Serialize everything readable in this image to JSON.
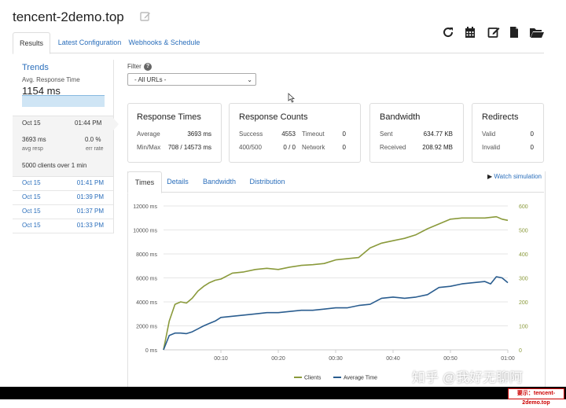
{
  "header": {
    "title": "tencent-2demo.top",
    "tabs": [
      "Results",
      "Latest Configuration",
      "Webhooks & Schedule"
    ]
  },
  "toolbar_icons": [
    "refresh-icon",
    "calendar-icon",
    "edit-icon",
    "document-icon",
    "folder-open-icon"
  ],
  "sidebar": {
    "trends_label": "Trends",
    "avg_label": "Avg. Response Time",
    "avg_value": "1154 ms",
    "selected": {
      "date": "Oct 15",
      "time": "01:44 PM",
      "avg_resp_value": "3693 ms",
      "avg_resp_label": "avg resp",
      "err_value": "0.0 %",
      "err_label": "err rate",
      "clients": "5000 clients over 1 min"
    },
    "runs": [
      {
        "date": "Oct 15",
        "time": "01:41 PM"
      },
      {
        "date": "Oct 15",
        "time": "01:39 PM"
      },
      {
        "date": "Oct 15",
        "time": "01:37 PM"
      },
      {
        "date": "Oct 15",
        "time": "01:33 PM"
      }
    ]
  },
  "filter": {
    "label": "Filter",
    "info": "?",
    "selected": "- All URLs -"
  },
  "cards": {
    "response_times": {
      "title": "Response Times",
      "average_label": "Average",
      "average_value": "3693 ms",
      "minmax_label": "Min/Max",
      "minmax_value": "708 / 14573 ms"
    },
    "response_counts": {
      "title": "Response Counts",
      "success_label": "Success",
      "success_value": "4553",
      "timeout_label": "Timeout",
      "timeout_value": "0",
      "err_label": "400/500",
      "err_value": "0 / 0",
      "network_label": "Network",
      "network_value": "0"
    },
    "bandwidth": {
      "title": "Bandwidth",
      "sent_label": "Sent",
      "sent_value": "634.77 KB",
      "received_label": "Received",
      "received_value": "208.92 MB"
    },
    "redirects": {
      "title": "Redirects",
      "valid_label": "Valid",
      "valid_value": "0",
      "invalid_label": "Invalid",
      "invalid_value": "0"
    }
  },
  "chart_tabs": [
    "Times",
    "Details",
    "Bandwidth",
    "Distribution"
  ],
  "watch_label": "Watch simulation",
  "watermark": "知乎 @我好无聊阿",
  "corner_label": "要示：tencent-2demo.top",
  "colors": {
    "clients": "#8a9a3b",
    "avg_time": "#2a5d8f",
    "link": "#2a6ebb"
  },
  "chart_data": {
    "type": "line",
    "x_ticks": [
      "00:10",
      "00:20",
      "00:30",
      "00:40",
      "00:50",
      "01:00"
    ],
    "x_range": [
      0,
      60
    ],
    "y_left": {
      "ticks": [
        "0 ms",
        "2000 ms",
        "4000 ms",
        "6000 ms",
        "8000 ms",
        "10000 ms",
        "12000 ms"
      ],
      "range": [
        0,
        12000
      ]
    },
    "y_right": {
      "ticks": [
        "0",
        "100",
        "200",
        "300",
        "400",
        "500",
        "600"
      ],
      "range": [
        0,
        600
      ]
    },
    "series": [
      {
        "name": "Clients",
        "axis": "right",
        "color": "#8a9a3b",
        "x": [
          0,
          1,
          2,
          3,
          4,
          5,
          6,
          7,
          8,
          9,
          10,
          12,
          14,
          16,
          18,
          20,
          22,
          24,
          26,
          28,
          30,
          32,
          34,
          36,
          38,
          40,
          42,
          44,
          46,
          48,
          50,
          52,
          54,
          56,
          58,
          59,
          60
        ],
        "y": [
          0,
          120,
          190,
          200,
          195,
          215,
          245,
          265,
          280,
          290,
          295,
          320,
          325,
          335,
          340,
          335,
          345,
          352,
          355,
          360,
          375,
          380,
          385,
          425,
          445,
          455,
          465,
          480,
          505,
          525,
          545,
          550,
          550,
          550,
          555,
          545,
          540
        ]
      },
      {
        "name": "Average Time",
        "axis": "left",
        "color": "#2a5d8f",
        "x": [
          0,
          1,
          2,
          3,
          4,
          5,
          6,
          7,
          8,
          9,
          10,
          12,
          14,
          16,
          18,
          20,
          22,
          24,
          26,
          28,
          30,
          32,
          34,
          36,
          38,
          40,
          42,
          44,
          46,
          48,
          50,
          52,
          54,
          56,
          57,
          58,
          59,
          60
        ],
        "y": [
          0,
          1200,
          1400,
          1400,
          1350,
          1500,
          1750,
          2000,
          2200,
          2400,
          2700,
          2800,
          2900,
          3000,
          3100,
          3100,
          3200,
          3300,
          3300,
          3400,
          3500,
          3500,
          3700,
          3800,
          4300,
          4400,
          4300,
          4400,
          4600,
          5200,
          5300,
          5500,
          5600,
          5700,
          5500,
          6100,
          6000,
          5600
        ]
      }
    ]
  }
}
